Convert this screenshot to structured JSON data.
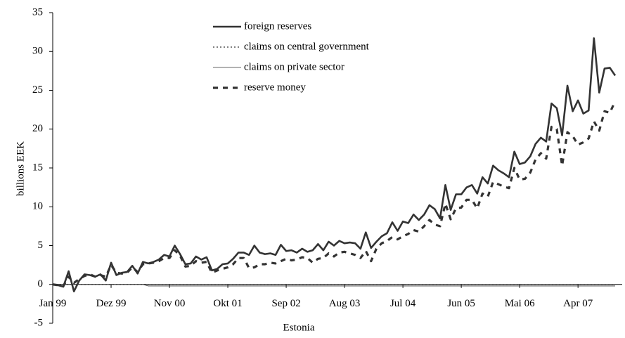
{
  "chart_data": {
    "type": "line",
    "x_label": "Estonia",
    "y_label": "billions EEK",
    "categories": [
      "Jan 99",
      null,
      null,
      null,
      null,
      null,
      null,
      null,
      null,
      null,
      null,
      "Dez 99",
      null,
      null,
      null,
      null,
      null,
      null,
      null,
      null,
      null,
      null,
      "Nov 00",
      null,
      null,
      null,
      null,
      null,
      null,
      null,
      null,
      null,
      null,
      "Okt 01",
      null,
      null,
      null,
      null,
      null,
      null,
      null,
      null,
      null,
      null,
      "Sep 02",
      null,
      null,
      null,
      null,
      null,
      null,
      null,
      null,
      null,
      null,
      "Aug 03",
      null,
      null,
      null,
      null,
      null,
      null,
      null,
      null,
      null,
      null,
      "Jul 04",
      null,
      null,
      null,
      null,
      null,
      null,
      null,
      null,
      null,
      null,
      "Jun 05",
      null,
      null,
      null,
      null,
      null,
      null,
      null,
      null,
      null,
      null,
      "Mai 06",
      null,
      null,
      null,
      null,
      null,
      null,
      null,
      null,
      null,
      null,
      "Apr 07",
      null,
      null,
      null,
      null,
      null,
      null,
      null
    ],
    "ylim": [
      -5,
      35
    ],
    "yticks": [
      -5,
      0,
      5,
      10,
      15,
      20,
      25,
      30,
      35
    ],
    "legend": "top",
    "series": [
      {
        "name": "foreign reserves",
        "color": "#333333",
        "line_style": "solid",
        "values": [
          0,
          -0.1,
          -0.3,
          1.7,
          -0.9,
          0.5,
          1.3,
          1.2,
          1.0,
          1.3,
          0.5,
          2.8,
          1.2,
          1.5,
          1.6,
          2.4,
          1.4,
          2.9,
          2.7,
          2.9,
          3.2,
          3.8,
          3.6,
          5.0,
          3.9,
          2.6,
          2.7,
          3.6,
          3.2,
          3.5,
          1.8,
          2.0,
          2.6,
          2.7,
          3.3,
          4.1,
          4.1,
          3.8,
          5.0,
          4.1,
          3.9,
          4.0,
          3.8,
          5.1,
          4.3,
          4.4,
          4.1,
          4.6,
          4.2,
          4.4,
          5.2,
          4.4,
          5.5,
          5.0,
          5.6,
          5.3,
          5.4,
          5.3,
          4.6,
          6.7,
          4.7,
          5.5,
          6.2,
          6.6,
          8.0,
          6.9,
          8.1,
          7.9,
          9.0,
          8.3,
          9.0,
          10.2,
          9.7,
          8.5,
          12.8,
          9.6,
          11.6,
          11.6,
          12.5,
          12.8,
          11.7,
          13.8,
          13.0,
          15.3,
          14.7,
          14.3,
          13.8,
          17.1,
          15.5,
          15.7,
          16.5,
          18.1,
          18.9,
          18.4,
          23.3,
          22.7,
          19.2,
          25.6,
          22.3,
          23.7,
          22.0,
          22.4,
          31.7,
          24.7,
          27.8,
          27.9,
          26.9
        ]
      },
      {
        "name": "claims on central government",
        "color": "#333333",
        "line_style": "dotted",
        "values": [
          0,
          0,
          0,
          0,
          0,
          0,
          0,
          0,
          0,
          0,
          0,
          0,
          0,
          0,
          0,
          0,
          0,
          0,
          0,
          0,
          0,
          0,
          0,
          0,
          0,
          0,
          0,
          0,
          0,
          0,
          0,
          0,
          0,
          0,
          0,
          0,
          0,
          0,
          0,
          0,
          0,
          0,
          0,
          0,
          0,
          0,
          0,
          0,
          0,
          0,
          0,
          0,
          0,
          0,
          0,
          0,
          0,
          0,
          0,
          0,
          0,
          0,
          0,
          0,
          0,
          0,
          0,
          0,
          0,
          0,
          0,
          0,
          0,
          0,
          0,
          0,
          0,
          0,
          0,
          0,
          0,
          0,
          0,
          0,
          0,
          0,
          0,
          0,
          0,
          0,
          0,
          0,
          0,
          0,
          0,
          0,
          0,
          0,
          0,
          0,
          0,
          0,
          0,
          0,
          0,
          0,
          0
        ]
      },
      {
        "name": "claims on private sector",
        "color": "#333333",
        "line_style": "thin",
        "values": [
          0,
          0,
          0,
          0,
          0,
          0,
          0,
          0,
          0,
          0,
          0,
          0,
          0,
          0,
          0,
          0,
          0,
          0,
          -0.2,
          -0.2,
          -0.2,
          -0.2,
          -0.2,
          -0.2,
          -0.2,
          -0.2,
          -0.2,
          -0.2,
          -0.2,
          -0.2,
          -0.2,
          -0.2,
          -0.2,
          -0.2,
          -0.2,
          -0.2,
          -0.2,
          -0.2,
          -0.2,
          -0.2,
          -0.2,
          -0.2,
          -0.2,
          -0.2,
          -0.2,
          -0.2,
          -0.2,
          -0.2,
          -0.2,
          -0.2,
          -0.2,
          -0.2,
          -0.2,
          -0.2,
          -0.2,
          -0.2,
          -0.2,
          -0.2,
          -0.2,
          -0.2,
          -0.2,
          -0.2,
          -0.2,
          -0.2,
          -0.2,
          -0.2,
          -0.2,
          -0.2,
          -0.2,
          -0.2,
          -0.2,
          -0.2,
          -0.2,
          -0.2,
          -0.2,
          -0.2,
          -0.2,
          -0.2,
          -0.2,
          -0.2,
          -0.2,
          -0.2,
          -0.2,
          -0.2,
          -0.2,
          -0.2,
          -0.2,
          -0.2,
          -0.2,
          -0.2,
          -0.2,
          -0.2,
          -0.2,
          -0.2,
          -0.2,
          -0.2,
          -0.2,
          -0.2,
          -0.2,
          -0.2,
          -0.2,
          -0.2,
          -0.2,
          -0.2,
          -0.2,
          -0.2,
          -0.2
        ]
      },
      {
        "name": "reserve money",
        "color": "#333333",
        "line_style": "dashed",
        "values": [
          0,
          -0.1,
          -0.2,
          1.0,
          0.2,
          0.7,
          1.1,
          1.3,
          1.0,
          1.2,
          1.0,
          2.5,
          1.5,
          1.4,
          1.5,
          2.2,
          1.6,
          2.6,
          2.7,
          2.8,
          3.0,
          3.4,
          3.4,
          4.4,
          3.7,
          2.3,
          2.4,
          3.0,
          2.8,
          2.9,
          1.5,
          1.8,
          2.0,
          2.2,
          2.6,
          3.4,
          3.4,
          2.1,
          2.2,
          2.6,
          2.6,
          2.8,
          2.7,
          3.0,
          3.3,
          3.1,
          3.2,
          3.5,
          3.4,
          2.8,
          3.3,
          3.4,
          4.0,
          3.6,
          4.1,
          4.2,
          4.0,
          3.8,
          3.4,
          4.3,
          3.0,
          4.6,
          5.3,
          5.6,
          6.1,
          5.8,
          6.2,
          6.5,
          7.0,
          6.8,
          7.5,
          8.3,
          7.7,
          7.5,
          10.4,
          8.4,
          9.8,
          9.9,
          10.9,
          10.9,
          9.8,
          11.7,
          11.3,
          13.2,
          12.9,
          12.6,
          12.4,
          15.0,
          13.5,
          13.6,
          14.4,
          16.1,
          16.9,
          16.2,
          20.3,
          20.0,
          15.3,
          19.6,
          19.1,
          18.0,
          18.3,
          18.8,
          21.0,
          19.8,
          22.3,
          22.1,
          23.6
        ]
      }
    ]
  }
}
